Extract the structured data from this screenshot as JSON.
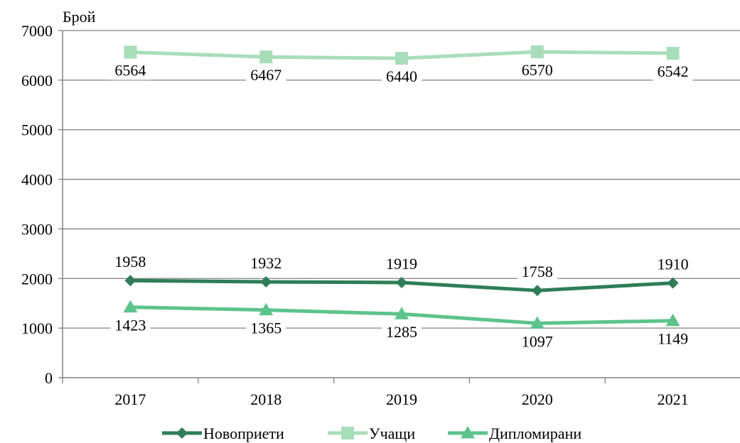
{
  "chart_data": {
    "type": "line",
    "title": "",
    "ylabel": "Брой",
    "xlabel": "",
    "categories": [
      "2017",
      "2018",
      "2019",
      "2020",
      "2021"
    ],
    "ylim": [
      0,
      7000
    ],
    "yticks": [
      0,
      1000,
      2000,
      3000,
      4000,
      5000,
      6000,
      7000
    ],
    "grid": true,
    "legend_position": "bottom",
    "series": [
      {
        "name": "Новоприети",
        "values": [
          1958,
          1932,
          1919,
          1758,
          1910
        ],
        "color": "#2e7d57",
        "marker": "diamond",
        "label_position": "above"
      },
      {
        "name": "Учащи",
        "values": [
          6564,
          6467,
          6440,
          6570,
          6542
        ],
        "color": "#a8ddb9",
        "marker": "square",
        "label_position": "below"
      },
      {
        "name": "Дипломирани",
        "values": [
          1423,
          1365,
          1285,
          1097,
          1149
        ],
        "color": "#5cc38b",
        "marker": "triangle",
        "label_position": "below"
      }
    ]
  }
}
